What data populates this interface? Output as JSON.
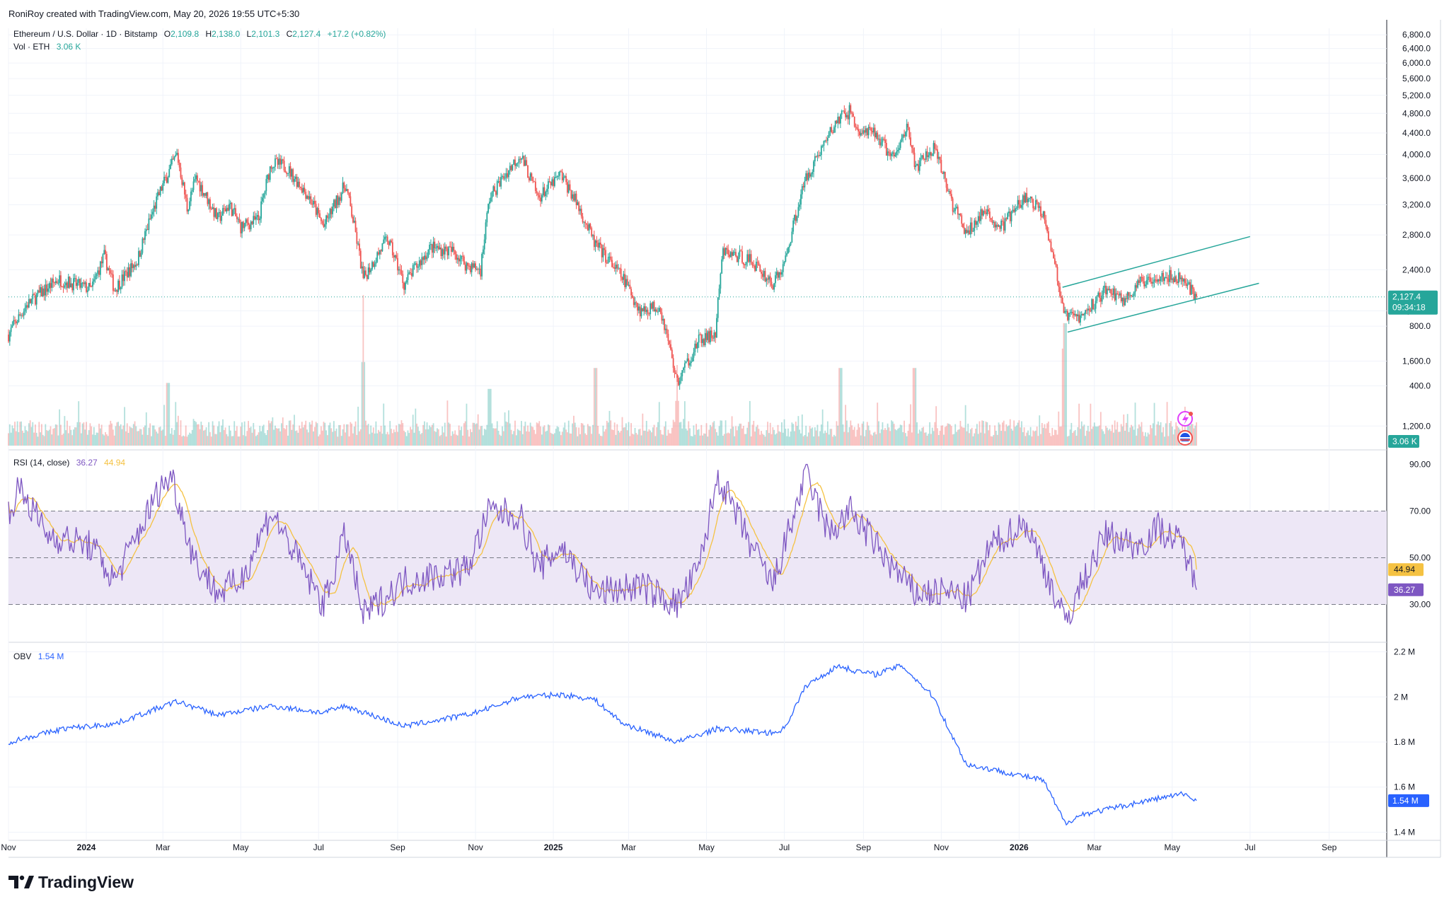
{
  "header": {
    "credit": "RoniRoy created with TradingView.com, May 20, 2026 19:55 UTC+5:30"
  },
  "legend": {
    "symbol": "Ethereum / U.S. Dollar · 1D · Bitstamp",
    "o_label": "O",
    "o_value": "2,109.8",
    "h_label": "H",
    "h_value": "2,138.0",
    "l_label": "L",
    "l_value": "2,101.3",
    "c_label": "C",
    "c_value": "2,127.4",
    "change": "+17.2 (+0.82%)",
    "vol_label": "Vol · ETH",
    "vol_value": "3.06 K"
  },
  "rsi": {
    "label": "RSI (14, close)",
    "value": "36.27",
    "ma_value": "44.94"
  },
  "obv": {
    "label": "OBV",
    "value": "1.54 M"
  },
  "price_badge": {
    "price": "2,127.4",
    "countdown": "09:34:18"
  },
  "volume_badge": "3.06 K",
  "branding": "TradingView",
  "colors": {
    "up": "#26a69a",
    "down": "#ef5350",
    "rsi_line": "#7e57c2",
    "rsi_ma": "#f5c242",
    "rsi_band": "#ede7f6",
    "obv_line": "#2962ff",
    "channel": "#26a69a",
    "grid": "#f0f3fa",
    "text": "#131722"
  },
  "chart_data": [
    {
      "type": "candlestick",
      "title": "Ethereum / U.S. Dollar · 1D · Bitstamp",
      "interval": "1D",
      "x_range": [
        "2023-11-01",
        "2026-10-15"
      ],
      "y_axis": "log",
      "ylim": [
        1100,
        7000
      ],
      "y_ticks": [
        "6,800.0",
        "6,400.0",
        "6,000.0",
        "5,600.0",
        "5,200.0",
        "4,800.0",
        "4,400.0",
        "4,000.0",
        "3,600.0",
        "3,200.0",
        "2,800.0",
        "2,400.0",
        "2,000.0",
        "1,600.0",
        "1,200.0"
      ],
      "x_ticks": [
        "Nov",
        "2024",
        "Mar",
        "May",
        "Jul",
        "Sep",
        "Nov",
        "2025",
        "Mar",
        "May",
        "Jul",
        "Sep",
        "Nov",
        "2026",
        "Mar",
        "May",
        "Jul",
        "Sep"
      ],
      "last_close": 2127.4,
      "close_keypoints": [
        [
          "2023-11-01",
          1800
        ],
        [
          "2023-11-15",
          2050
        ],
        [
          "2023-12-10",
          2300
        ],
        [
          "2024-01-05",
          2200
        ],
        [
          "2024-01-15",
          2550
        ],
        [
          "2024-01-23",
          2200
        ],
        [
          "2024-02-10",
          2500
        ],
        [
          "2024-02-28",
          3400
        ],
        [
          "2024-03-12",
          4000
        ],
        [
          "2024-03-20",
          3150
        ],
        [
          "2024-03-27",
          3600
        ],
        [
          "2024-04-13",
          3000
        ],
        [
          "2024-04-22",
          3200
        ],
        [
          "2024-05-01",
          2900
        ],
        [
          "2024-05-15",
          3000
        ],
        [
          "2024-05-25",
          3850
        ],
        [
          "2024-06-05",
          3800
        ],
        [
          "2024-06-24",
          3300
        ],
        [
          "2024-07-05",
          2900
        ],
        [
          "2024-07-22",
          3500
        ],
        [
          "2024-08-05",
          2300
        ],
        [
          "2024-08-24",
          2750
        ],
        [
          "2024-09-06",
          2250
        ],
        [
          "2024-09-27",
          2650
        ],
        [
          "2024-10-15",
          2600
        ],
        [
          "2024-10-25",
          2450
        ],
        [
          "2024-11-05",
          2400
        ],
        [
          "2024-11-12",
          3300
        ],
        [
          "2024-12-06",
          4000
        ],
        [
          "2024-12-20",
          3300
        ],
        [
          "2025-01-07",
          3650
        ],
        [
          "2025-01-20",
          3200
        ],
        [
          "2025-02-02",
          2700
        ],
        [
          "2025-02-25",
          2300
        ],
        [
          "2025-03-10",
          2000
        ],
        [
          "2025-03-25",
          2050
        ],
        [
          "2025-04-08",
          1450
        ],
        [
          "2025-04-25",
          1750
        ],
        [
          "2025-05-08",
          1800
        ],
        [
          "2025-05-14",
          2600
        ],
        [
          "2025-06-05",
          2500
        ],
        [
          "2025-06-22",
          2250
        ],
        [
          "2025-07-01",
          2450
        ],
        [
          "2025-07-18",
          3600
        ],
        [
          "2025-08-13",
          4700
        ],
        [
          "2025-08-22",
          4850
        ],
        [
          "2025-08-28",
          4400
        ],
        [
          "2025-09-10",
          4400
        ],
        [
          "2025-09-25",
          3900
        ],
        [
          "2025-10-06",
          4600
        ],
        [
          "2025-10-11",
          3750
        ],
        [
          "2025-10-26",
          4100
        ],
        [
          "2025-11-10",
          3200
        ],
        [
          "2025-11-21",
          2800
        ],
        [
          "2025-12-03",
          3100
        ],
        [
          "2025-12-18",
          2900
        ],
        [
          "2026-01-06",
          3300
        ],
        [
          "2026-01-20",
          3100
        ],
        [
          "2026-02-05",
          1950
        ],
        [
          "2026-02-20",
          1950
        ],
        [
          "2026-03-10",
          2200
        ],
        [
          "2026-03-25",
          2100
        ],
        [
          "2026-04-05",
          2250
        ],
        [
          "2026-04-20",
          2350
        ],
        [
          "2026-05-10",
          2300
        ],
        [
          "2026-05-20",
          2127.4
        ]
      ],
      "annotations": [
        {
          "type": "trend_line",
          "label": "ascending channel top",
          "points": [
            [
              "2026-02-04",
              2220
            ],
            [
              "2026-07-01",
              2780
            ]
          ]
        },
        {
          "type": "trend_line",
          "label": "ascending channel bottom",
          "points": [
            [
              "2026-02-08",
              1820
            ],
            [
              "2026-07-08",
              2260
            ]
          ]
        }
      ]
    },
    {
      "type": "bar",
      "title": "Vol · ETH",
      "last_value": "3.06 K",
      "y_ticks": [
        "800.0",
        "400.0"
      ],
      "ylim": [
        0,
        900
      ],
      "spikes_K": [
        [
          "2024-03-05",
          420
        ],
        [
          "2024-08-05",
          560
        ],
        [
          "2024-11-12",
          380
        ],
        [
          "2025-02-03",
          520
        ],
        [
          "2025-04-08",
          300
        ],
        [
          "2025-08-14",
          520
        ],
        [
          "2025-10-11",
          520
        ],
        [
          "2026-02-05",
          650
        ],
        [
          "2026-02-06",
          820
        ]
      ]
    },
    {
      "type": "line",
      "title": "RSI (14, close)",
      "series": [
        {
          "name": "RSI",
          "last": 36.27
        },
        {
          "name": "RSI-based MA",
          "last": 44.94
        }
      ],
      "ylim": [
        15,
        95
      ],
      "y_ticks": [
        "90.00",
        "70.00",
        "50.00",
        "30.00"
      ],
      "bands": {
        "upper": 70,
        "middle": 50,
        "lower": 30
      },
      "keypoints": [
        [
          "2023-11-01",
          70
        ],
        [
          "2023-11-10",
          80
        ],
        [
          "2023-12-01",
          60
        ],
        [
          "2024-01-05",
          55
        ],
        [
          "2024-01-23",
          40
        ],
        [
          "2024-02-28",
          80
        ],
        [
          "2024-03-08",
          85
        ],
        [
          "2024-03-25",
          50
        ],
        [
          "2024-04-13",
          35
        ],
        [
          "2024-05-01",
          40
        ],
        [
          "2024-05-25",
          70
        ],
        [
          "2024-06-24",
          40
        ],
        [
          "2024-07-05",
          30
        ],
        [
          "2024-07-22",
          60
        ],
        [
          "2024-08-05",
          25
        ],
        [
          "2024-09-06",
          40
        ],
        [
          "2024-10-25",
          45
        ],
        [
          "2024-11-12",
          70
        ],
        [
          "2024-12-06",
          68
        ],
        [
          "2024-12-20",
          45
        ],
        [
          "2025-01-07",
          55
        ],
        [
          "2025-02-02",
          35
        ],
        [
          "2025-03-10",
          38
        ],
        [
          "2025-04-08",
          30
        ],
        [
          "2025-04-25",
          45
        ],
        [
          "2025-05-10",
          85
        ],
        [
          "2025-06-05",
          55
        ],
        [
          "2025-06-22",
          38
        ],
        [
          "2025-07-18",
          86
        ],
        [
          "2025-08-05",
          60
        ],
        [
          "2025-08-22",
          70
        ],
        [
          "2025-09-25",
          45
        ],
        [
          "2025-10-11",
          35
        ],
        [
          "2025-11-10",
          35
        ],
        [
          "2025-11-21",
          32
        ],
        [
          "2025-12-10",
          55
        ],
        [
          "2026-01-06",
          65
        ],
        [
          "2026-01-25",
          40
        ],
        [
          "2026-02-06",
          22
        ],
        [
          "2026-02-20",
          40
        ],
        [
          "2026-03-10",
          60
        ],
        [
          "2026-04-05",
          55
        ],
        [
          "2026-04-20",
          63
        ],
        [
          "2026-05-10",
          55
        ],
        [
          "2026-05-20",
          36.27
        ]
      ]
    },
    {
      "type": "line",
      "title": "OBV",
      "series": [
        {
          "name": "OBV",
          "last": 1.54
        }
      ],
      "unit": "M",
      "ylim": [
        1.37,
        2.23
      ],
      "y_ticks": [
        "2.2 M",
        "2 M",
        "1.8 M",
        "1.6 M",
        "1.4 M"
      ],
      "keypoints": [
        [
          "2023-11-01",
          1.8
        ],
        [
          "2023-12-15",
          1.86
        ],
        [
          "2024-01-23",
          1.88
        ],
        [
          "2024-03-12",
          1.98
        ],
        [
          "2024-04-13",
          1.92
        ],
        [
          "2024-05-25",
          1.96
        ],
        [
          "2024-07-05",
          1.93
        ],
        [
          "2024-07-22",
          1.96
        ],
        [
          "2024-09-06",
          1.87
        ],
        [
          "2024-10-25",
          1.92
        ],
        [
          "2024-11-12",
          1.95
        ],
        [
          "2024-12-06",
          2.0
        ],
        [
          "2025-01-07",
          2.01
        ],
        [
          "2025-02-02",
          1.99
        ],
        [
          "2025-02-25",
          1.88
        ],
        [
          "2025-04-08",
          1.8
        ],
        [
          "2025-05-10",
          1.86
        ],
        [
          "2025-06-22",
          1.84
        ],
        [
          "2025-07-01",
          1.86
        ],
        [
          "2025-07-18",
          2.05
        ],
        [
          "2025-08-13",
          2.14
        ],
        [
          "2025-08-22",
          2.12
        ],
        [
          "2025-09-10",
          2.1
        ],
        [
          "2025-10-01",
          2.14
        ],
        [
          "2025-10-26",
          2.0
        ],
        [
          "2025-11-10",
          1.82
        ],
        [
          "2025-11-21",
          1.7
        ],
        [
          "2025-12-18",
          1.67
        ],
        [
          "2026-01-20",
          1.63
        ],
        [
          "2026-02-06",
          1.44
        ],
        [
          "2026-02-20",
          1.48
        ],
        [
          "2026-03-10",
          1.5
        ],
        [
          "2026-04-20",
          1.55
        ],
        [
          "2026-05-10",
          1.57
        ],
        [
          "2026-05-20",
          1.54
        ]
      ]
    }
  ]
}
